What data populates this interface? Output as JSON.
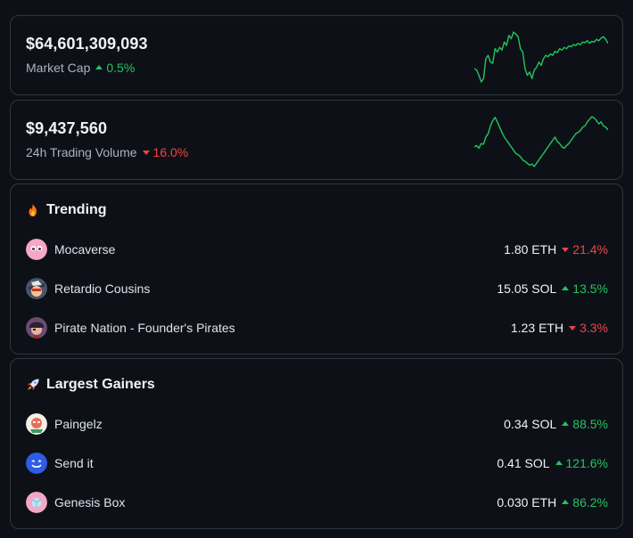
{
  "market_cap": {
    "value": "$64,601,309,093",
    "label": "Market Cap",
    "change": "0.5%",
    "direction": "up",
    "sparkline": [
      40,
      38,
      30,
      20,
      25,
      55,
      60,
      50,
      48,
      70,
      65,
      72,
      68,
      80,
      75,
      90,
      85,
      95,
      92,
      88,
      70,
      65,
      40,
      30,
      35,
      25,
      38,
      42,
      50,
      45,
      55,
      60,
      58,
      62,
      60,
      66,
      64,
      70,
      68,
      72,
      70,
      74,
      73,
      76,
      75,
      78,
      76,
      80,
      79,
      82,
      78,
      81,
      80,
      84,
      82,
      86,
      88,
      84,
      78
    ]
  },
  "volume": {
    "value": "$9,437,560",
    "label": "24h Trading Volume",
    "change": "16.0%",
    "direction": "down",
    "sparkline": [
      40,
      42,
      38,
      45,
      44,
      55,
      60,
      72,
      80,
      85,
      78,
      70,
      62,
      55,
      50,
      45,
      40,
      35,
      30,
      28,
      25,
      20,
      18,
      15,
      12,
      14,
      10,
      15,
      20,
      25,
      30,
      35,
      40,
      45,
      50,
      55,
      48,
      45,
      40,
      38,
      42,
      45,
      50,
      55,
      60,
      62,
      65,
      70,
      72,
      78,
      82,
      86,
      84,
      80,
      75,
      78,
      72,
      70,
      66
    ]
  },
  "trending": {
    "title": "Trending",
    "items": [
      {
        "name": "Mocaverse",
        "price": "1.80 ETH",
        "change": "21.4%",
        "direction": "down",
        "avatar": "mocaverse-avatar"
      },
      {
        "name": "Retardio Cousins",
        "price": "15.05 SOL",
        "change": "13.5%",
        "direction": "up",
        "avatar": "retardio-avatar"
      },
      {
        "name": "Pirate Nation - Founder's Pirates",
        "price": "1.23 ETH",
        "change": "3.3%",
        "direction": "down",
        "avatar": "pirate-avatar"
      }
    ]
  },
  "gainers": {
    "title": "Largest Gainers",
    "items": [
      {
        "name": "Paingelz",
        "price": "0.34 SOL",
        "change": "88.5%",
        "direction": "up",
        "avatar": "paingelz-avatar"
      },
      {
        "name": "Send it",
        "price": "0.41 SOL",
        "change": "121.6%",
        "direction": "up",
        "avatar": "sendit-avatar"
      },
      {
        "name": "Genesis Box",
        "price": "0.030 ETH",
        "change": "86.2%",
        "direction": "up",
        "avatar": "genesis-avatar"
      }
    ]
  },
  "colors": {
    "up": "#22c55e",
    "down": "#ef4444",
    "background": "#0d1117",
    "border": "#30363d"
  }
}
